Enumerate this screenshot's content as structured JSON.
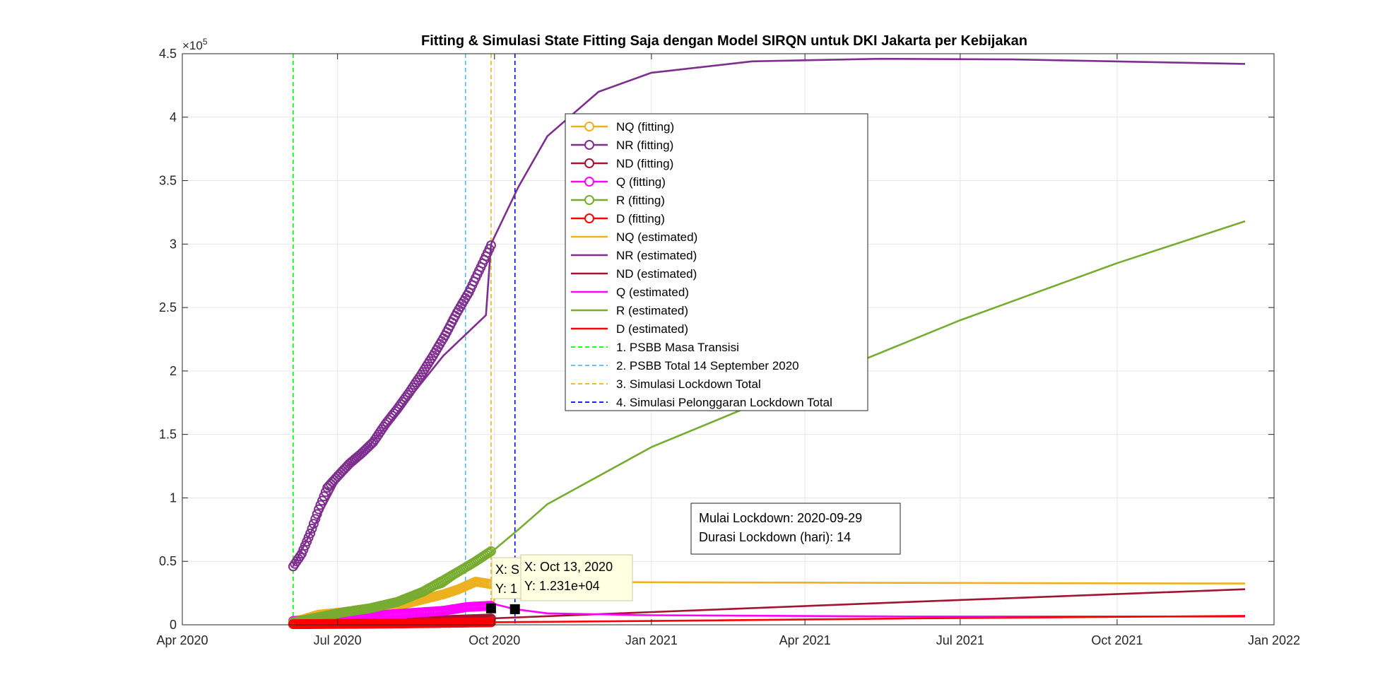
{
  "chart_data": {
    "type": "line",
    "title": "Fitting & Simulasi State Fitting Saja dengan Model SIRQN untuk DKI Jakarta per Kebijakan",
    "xlabel": "",
    "ylabel": "",
    "y_exponent_label": "×10",
    "y_exponent_power": "5",
    "xlim": [
      "2020-04-01",
      "2022-01-01"
    ],
    "ylim": [
      0,
      450000
    ],
    "x_ticks": [
      {
        "date": "2020-04-01",
        "label": "Apr 2020"
      },
      {
        "date": "2020-07-01",
        "label": "Jul 2020"
      },
      {
        "date": "2020-10-01",
        "label": "Oct 2020"
      },
      {
        "date": "2021-01-01",
        "label": "Jan 2021"
      },
      {
        "date": "2021-04-01",
        "label": "Apr 2021"
      },
      {
        "date": "2021-07-01",
        "label": "Jul 2021"
      },
      {
        "date": "2021-10-01",
        "label": "Oct 2021"
      },
      {
        "date": "2022-01-01",
        "label": "Jan 2022"
      }
    ],
    "y_ticks": [
      {
        "value": 0,
        "label": "0"
      },
      {
        "value": 50000,
        "label": "0.5"
      },
      {
        "value": 100000,
        "label": "1"
      },
      {
        "value": 150000,
        "label": "1.5"
      },
      {
        "value": 200000,
        "label": "2"
      },
      {
        "value": 250000,
        "label": "2.5"
      },
      {
        "value": 300000,
        "label": "3"
      },
      {
        "value": 350000,
        "label": "3.5"
      },
      {
        "value": 400000,
        "label": "4"
      },
      {
        "value": 450000,
        "label": "4.5"
      }
    ],
    "grid": true,
    "legend_position": "upper-center",
    "fitting_series": [
      {
        "name": "NQ (fitting)",
        "color": "#EDB120",
        "points": [
          [
            "2020-06-05",
            2000
          ],
          [
            "2020-06-20",
            8000
          ],
          [
            "2020-07-05",
            10000
          ],
          [
            "2020-07-20",
            13000
          ],
          [
            "2020-08-05",
            15000
          ],
          [
            "2020-08-20",
            20000
          ],
          [
            "2020-09-01",
            24000
          ],
          [
            "2020-09-10",
            28000
          ],
          [
            "2020-09-20",
            34000
          ],
          [
            "2020-09-29",
            32000
          ]
        ]
      },
      {
        "name": "NR (fitting)",
        "color": "#7E2F8E",
        "points": [
          [
            "2020-06-05",
            46000
          ],
          [
            "2020-06-10",
            56000
          ],
          [
            "2020-06-15",
            72000
          ],
          [
            "2020-06-20",
            91000
          ],
          [
            "2020-06-25",
            108000
          ],
          [
            "2020-07-01",
            117000
          ],
          [
            "2020-07-08",
            127000
          ],
          [
            "2020-07-15",
            135000
          ],
          [
            "2020-07-22",
            144000
          ],
          [
            "2020-07-29",
            158000
          ],
          [
            "2020-08-05",
            170000
          ],
          [
            "2020-08-12",
            183000
          ],
          [
            "2020-08-19",
            197000
          ],
          [
            "2020-08-26",
            212000
          ],
          [
            "2020-09-02",
            228000
          ],
          [
            "2020-09-09",
            246000
          ],
          [
            "2020-09-16",
            262000
          ],
          [
            "2020-09-22",
            279000
          ],
          [
            "2020-09-29",
            299000
          ]
        ]
      },
      {
        "name": "ND (fitting)",
        "color": "#A2142F",
        "points": [
          [
            "2020-06-05",
            1000
          ],
          [
            "2020-07-01",
            1500
          ],
          [
            "2020-08-01",
            2300
          ],
          [
            "2020-09-01",
            3600
          ],
          [
            "2020-09-29",
            4900
          ]
        ]
      },
      {
        "name": "Q (fitting)",
        "color": "#FF00FF",
        "points": [
          [
            "2020-06-05",
            3000
          ],
          [
            "2020-07-01",
            5000
          ],
          [
            "2020-07-20",
            7000
          ],
          [
            "2020-08-10",
            9000
          ],
          [
            "2020-09-01",
            11000
          ],
          [
            "2020-09-15",
            14000
          ],
          [
            "2020-09-29",
            15000
          ]
        ]
      },
      {
        "name": "R (fitting)",
        "color": "#77AC30",
        "points": [
          [
            "2020-06-05",
            2000
          ],
          [
            "2020-06-20",
            6000
          ],
          [
            "2020-07-05",
            10000
          ],
          [
            "2020-07-20",
            13000
          ],
          [
            "2020-08-05",
            18000
          ],
          [
            "2020-08-20",
            26000
          ],
          [
            "2020-09-01",
            35000
          ],
          [
            "2020-09-10",
            42000
          ],
          [
            "2020-09-20",
            50000
          ],
          [
            "2020-09-29",
            58000
          ]
        ]
      },
      {
        "name": "D (fitting)",
        "color": "#FF0000",
        "points": [
          [
            "2020-06-05",
            500
          ],
          [
            "2020-07-01",
            700
          ],
          [
            "2020-08-01",
            1000
          ],
          [
            "2020-09-01",
            1500
          ],
          [
            "2020-09-29",
            2000
          ]
        ]
      }
    ],
    "estimated_series": [
      {
        "name": "NQ (estimated)",
        "color": "#EDB120",
        "points": [
          [
            "2020-06-05",
            3000
          ],
          [
            "2020-07-01",
            9000
          ],
          [
            "2020-08-01",
            11000
          ],
          [
            "2020-09-01",
            12000
          ],
          [
            "2020-09-29",
            13000
          ],
          [
            "2020-10-05",
            34000
          ],
          [
            "2020-11-01",
            34000
          ],
          [
            "2021-01-01",
            33500
          ],
          [
            "2021-06-01",
            33000
          ],
          [
            "2021-12-15",
            32500
          ]
        ]
      },
      {
        "name": "NR (estimated)",
        "color": "#7E2F8E",
        "points": [
          [
            "2020-06-05",
            46000
          ],
          [
            "2020-07-01",
            113000
          ],
          [
            "2020-08-01",
            160000
          ],
          [
            "2020-09-01",
            212000
          ],
          [
            "2020-09-26",
            244000
          ],
          [
            "2020-09-29",
            300000
          ],
          [
            "2020-10-15",
            345000
          ],
          [
            "2020-11-01",
            385000
          ],
          [
            "2020-12-01",
            420000
          ],
          [
            "2021-01-01",
            435000
          ],
          [
            "2021-03-01",
            444000
          ],
          [
            "2021-05-15",
            446000
          ],
          [
            "2021-08-01",
            445500
          ],
          [
            "2021-12-15",
            442000
          ]
        ]
      },
      {
        "name": "ND (estimated)",
        "color": "#A2142F",
        "points": [
          [
            "2020-06-05",
            1000
          ],
          [
            "2020-09-29",
            5000
          ],
          [
            "2021-01-01",
            10000
          ],
          [
            "2021-06-01",
            18000
          ],
          [
            "2021-12-15",
            28000
          ]
        ]
      },
      {
        "name": "Q (estimated)",
        "color": "#FF00FF",
        "points": [
          [
            "2020-06-05",
            3000
          ],
          [
            "2020-07-01",
            4000
          ],
          [
            "2020-08-01",
            9000
          ],
          [
            "2020-09-01",
            13000
          ],
          [
            "2020-09-29",
            17000
          ],
          [
            "2020-10-13",
            12310
          ],
          [
            "2020-11-01",
            9000
          ],
          [
            "2021-01-01",
            7500
          ],
          [
            "2021-06-01",
            6500
          ],
          [
            "2021-12-15",
            6500
          ]
        ]
      },
      {
        "name": "R (estimated)",
        "color": "#77AC30",
        "points": [
          [
            "2020-06-05",
            2000
          ],
          [
            "2020-07-01",
            10000
          ],
          [
            "2020-08-01",
            17000
          ],
          [
            "2020-09-01",
            30000
          ],
          [
            "2020-09-29",
            57000
          ],
          [
            "2020-10-15",
            75000
          ],
          [
            "2020-11-01",
            95000
          ],
          [
            "2021-01-01",
            140000
          ],
          [
            "2021-04-01",
            190000
          ],
          [
            "2021-07-01",
            240000
          ],
          [
            "2021-10-01",
            285000
          ],
          [
            "2021-12-15",
            318000
          ]
        ]
      },
      {
        "name": "D (estimated)",
        "color": "#FF0000",
        "points": [
          [
            "2020-06-05",
            500
          ],
          [
            "2020-09-29",
            2000
          ],
          [
            "2021-01-01",
            3000
          ],
          [
            "2021-06-01",
            5000
          ],
          [
            "2021-12-15",
            7000
          ]
        ]
      }
    ],
    "policy_lines": [
      {
        "name": "1. PSBB Masa Transisi",
        "date": "2020-06-05",
        "color": "#00FF00"
      },
      {
        "name": "2. PSBB Total 14 September 2020",
        "date": "2020-09-14",
        "color": "#4DBEEE"
      },
      {
        "name": "3. Simulasi Lockdown Total",
        "date": "2020-09-29",
        "color": "#EDB120"
      },
      {
        "name": "4. Simulasi Pelonggaran Lockdown Total",
        "date": "2020-10-13",
        "color": "#0000FF"
      }
    ],
    "annotation": {
      "line1": "Mulai Lockdown: 2020-09-29",
      "line2": "Durasi Lockdown (hari): 14"
    },
    "datatips": [
      {
        "date": "2020-09-29",
        "value": 13000,
        "x_label": "X: S",
        "y_label": "Y: 1"
      },
      {
        "date": "2020-10-13",
        "value": 12310,
        "x_label": "X: Oct 13, 2020",
        "y_label": "Y: 1.231e+04"
      }
    ]
  }
}
